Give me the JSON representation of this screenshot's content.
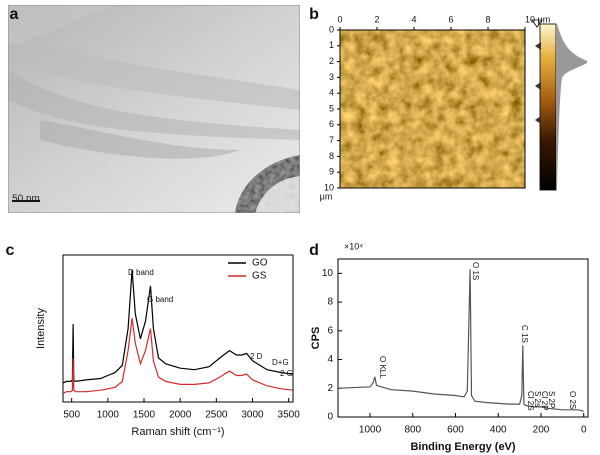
{
  "chart_data": [
    {
      "type": "image",
      "label": "a",
      "scale_bar": "50 nm"
    },
    {
      "type": "image",
      "label": "b",
      "xlim": [
        0,
        10
      ],
      "xticks": [
        0,
        2,
        4,
        6,
        8,
        {
          "value": 10,
          "label": "10 μm"
        }
      ],
      "ylim": [
        0,
        10
      ],
      "yticks": [
        0,
        1,
        2,
        3,
        4,
        5,
        6,
        7,
        8,
        9,
        10
      ],
      "ylabel": "μm"
    },
    {
      "type": "line",
      "label": "c",
      "x": [
        380,
        430,
        490,
        510,
        520,
        530,
        550,
        700,
        900,
        1000,
        1100,
        1200,
        1280,
        1335,
        1380,
        1450,
        1520,
        1590,
        1630,
        1700,
        1800,
        2000,
        2200,
        2400,
        2550,
        2680,
        2780,
        2850,
        2920,
        3000,
        3200,
        3400,
        3560
      ],
      "series": [
        {
          "name": "GO",
          "color": "#000000",
          "values": [
            13,
            14,
            14,
            15,
            53,
            15,
            14,
            15,
            16,
            18,
            20,
            25,
            50,
            90,
            60,
            43,
            55,
            79,
            50,
            30,
            26,
            23,
            22,
            24,
            30,
            35,
            32,
            32,
            33,
            28,
            22,
            20,
            19
          ]
        },
        {
          "name": "GS",
          "color": "#d42a2a",
          "values": [
            6,
            7,
            7,
            8,
            30,
            8,
            7,
            7,
            8,
            9,
            10,
            14,
            35,
            57,
            40,
            26,
            35,
            50,
            28,
            17,
            14,
            12,
            12,
            13,
            17,
            21,
            18,
            18,
            19,
            15,
            11,
            9,
            8
          ]
        }
      ],
      "xlim": [
        380,
        3560
      ],
      "xticks": [
        500,
        1000,
        1500,
        2000,
        2500,
        3000,
        3500
      ],
      "ylim": [
        0,
        100
      ],
      "xlabel": "Raman shift (cm⁻¹)",
      "ylabel": "Intensity",
      "legend": "upper right",
      "annotations": [
        "D band",
        "G band",
        "2 D",
        "D+G",
        "2 G"
      ]
    },
    {
      "type": "line",
      "label": "d",
      "x": [
        1150,
        1000,
        985,
        978,
        970,
        900,
        800,
        700,
        600,
        560,
        545,
        532,
        525,
        510,
        450,
        350,
        300,
        290,
        285,
        280,
        270,
        230,
        200,
        165,
        100,
        25,
        0
      ],
      "series": [
        {
          "color": "#555555",
          "values": [
            2.0,
            2.1,
            2.4,
            2.8,
            2.2,
            1.9,
            1.8,
            1.6,
            1.5,
            1.4,
            1.8,
            10.3,
            1.5,
            1.1,
            1.0,
            0.9,
            0.9,
            1.5,
            5.0,
            0.9,
            0.8,
            0.7,
            0.7,
            0.6,
            0.5,
            0.5,
            0.4
          ]
        }
      ],
      "xlim": [
        1150,
        -20
      ],
      "xticks": [
        1000,
        800,
        600,
        400,
        200,
        0
      ],
      "ylim": [
        0,
        11
      ],
      "yticks": [
        0,
        2,
        4,
        6,
        8,
        10
      ],
      "y_multiplier": "×10⁴",
      "xlabel": "Binding Energy (eV)",
      "ylabel": "CPS",
      "annotations": [
        "O KLL",
        "O 1S",
        "C 1S",
        "Cl 2S",
        "S 2s",
        "Cl 2P",
        "S 2P",
        "O 2S"
      ]
    }
  ]
}
